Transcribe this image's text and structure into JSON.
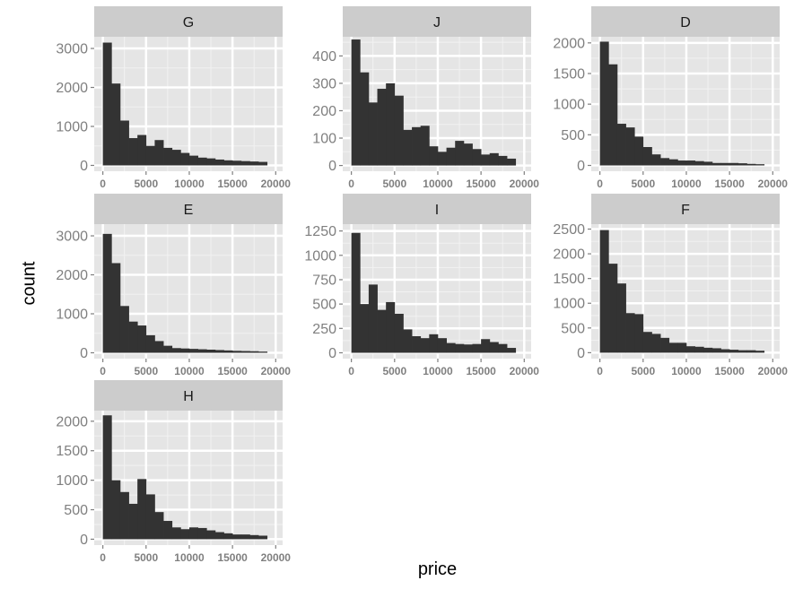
{
  "chart_data": {
    "type": "bar",
    "chart_kind": "faceted histogram",
    "xlabel": "price",
    "ylabel": "count",
    "x_ticks": [
      0,
      5000,
      10000,
      15000,
      20000
    ],
    "xlim": [
      -1000,
      20800
    ],
    "bins": [
      0,
      1000,
      2000,
      3000,
      4000,
      5000,
      6000,
      7000,
      8000,
      9000,
      10000,
      11000,
      12000,
      13000,
      14000,
      15000,
      16000,
      17000,
      18000,
      19000
    ],
    "bin_width": 1000,
    "colors": {
      "panel_bg": "#e5e5e5",
      "grid_major": "#ffffff",
      "grid_minor": "#f2f2f2",
      "strip_bg": "#cccccc",
      "bar_fill": "#333333",
      "tick_text": "#7f7f7f"
    },
    "facets": [
      {
        "label": "G",
        "ylim": [
          -150,
          3300
        ],
        "yticks": [
          0,
          1000,
          2000,
          3000
        ],
        "values": [
          3150,
          2100,
          1150,
          700,
          780,
          500,
          650,
          450,
          400,
          320,
          250,
          200,
          180,
          150,
          130,
          120,
          110,
          100,
          90,
          0
        ]
      },
      {
        "label": "J",
        "ylim": [
          -21,
          470
        ],
        "yticks": [
          0,
          100,
          200,
          300,
          400
        ],
        "values": [
          460,
          340,
          230,
          280,
          300,
          255,
          130,
          140,
          145,
          70,
          50,
          65,
          90,
          80,
          60,
          40,
          45,
          35,
          25,
          0
        ]
      },
      {
        "label": "D",
        "ylim": [
          -95,
          2100
        ],
        "yticks": [
          0,
          500,
          1000,
          1500,
          2000
        ],
        "values": [
          2020,
          1650,
          680,
          620,
          470,
          300,
          180,
          120,
          100,
          80,
          80,
          70,
          60,
          40,
          40,
          40,
          35,
          25,
          20,
          0
        ]
      },
      {
        "label": "E",
        "ylim": [
          -150,
          3300
        ],
        "yticks": [
          0,
          1000,
          2000,
          3000
        ],
        "values": [
          3050,
          2300,
          1200,
          800,
          700,
          450,
          300,
          180,
          120,
          110,
          100,
          90,
          80,
          70,
          60,
          50,
          45,
          40,
          30,
          0
        ]
      },
      {
        "label": "I",
        "ylim": [
          -60,
          1320
        ],
        "yticks": [
          0,
          250,
          500,
          750,
          1000,
          1250
        ],
        "values": [
          1230,
          500,
          700,
          440,
          520,
          400,
          240,
          170,
          150,
          190,
          150,
          100,
          90,
          85,
          90,
          140,
          110,
          90,
          50,
          0
        ]
      },
      {
        "label": "F",
        "ylim": [
          -120,
          2600
        ],
        "yticks": [
          0,
          500,
          1000,
          1500,
          2000,
          2500
        ],
        "values": [
          2480,
          1800,
          1400,
          800,
          780,
          420,
          380,
          300,
          200,
          200,
          130,
          120,
          100,
          90,
          70,
          60,
          50,
          50,
          40,
          0
        ]
      },
      {
        "label": "H",
        "ylim": [
          -100,
          2180
        ],
        "yticks": [
          0,
          500,
          1000,
          1500,
          2000
        ],
        "values": [
          2100,
          1000,
          800,
          600,
          1020,
          760,
          460,
          310,
          200,
          170,
          200,
          190,
          150,
          120,
          100,
          80,
          80,
          70,
          60,
          0
        ]
      }
    ]
  }
}
